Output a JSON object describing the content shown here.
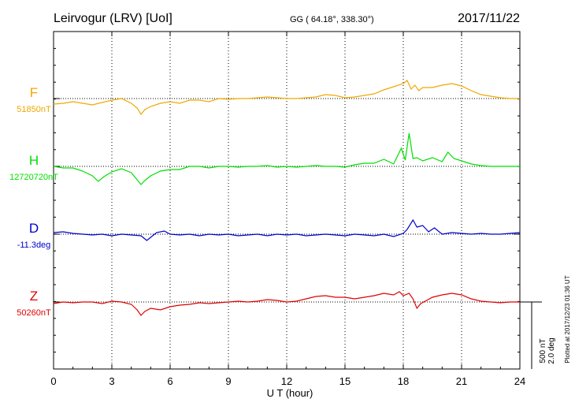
{
  "header": {
    "station": "Leirvogur (LRV)  [UoI]",
    "coords": "GG ( 64.18°, 338.30°)",
    "date": "2017/11/22"
  },
  "scale_bar": {
    "nT": "500 nT",
    "deg": "2.0 deg"
  },
  "plotted_note": "Plotted at 2017/12/23 01:36 UT",
  "colors": {
    "F": "#f0a800",
    "H": "#00e000",
    "D": "#0000cc",
    "Z": "#e00000",
    "axis": "#000000"
  },
  "chart_data": {
    "type": "line",
    "xlabel": "U T (hour)",
    "xlim": [
      0,
      24
    ],
    "xticks": [
      0,
      3,
      6,
      9,
      12,
      15,
      18,
      21,
      24
    ],
    "tick_labels": [
      "0",
      "3",
      "6",
      "9",
      "12",
      "15",
      "18",
      "21",
      "24"
    ],
    "ylim": [
      -1000,
      1000
    ],
    "ylabel": "",
    "grid": true,
    "series": [
      {
        "name": "F",
        "baseline_label": "51850nT",
        "color": "#f0a800",
        "x": [
          0,
          0.5,
          1,
          1.5,
          2,
          2.5,
          3,
          3.5,
          4,
          4.3,
          4.5,
          4.7,
          5,
          5.5,
          6,
          6.5,
          7,
          7.5,
          8,
          8.5,
          9,
          9.5,
          10,
          10.5,
          11,
          11.5,
          12,
          12.5,
          13,
          13.5,
          14,
          14.5,
          15,
          15.5,
          16,
          16.5,
          17,
          17.5,
          18,
          18.2,
          18.4,
          18.6,
          18.8,
          19,
          19.5,
          20,
          20.5,
          21,
          21.5,
          22,
          22.5,
          23,
          23.5,
          24
        ],
        "values": [
          -70,
          -60,
          -40,
          -60,
          -80,
          -50,
          -20,
          0,
          -60,
          -120,
          -200,
          -140,
          -100,
          -60,
          -40,
          -60,
          -20,
          -20,
          -40,
          0,
          -10,
          0,
          0,
          10,
          20,
          10,
          0,
          0,
          10,
          20,
          50,
          40,
          10,
          20,
          40,
          60,
          110,
          150,
          190,
          230,
          120,
          170,
          100,
          140,
          140,
          170,
          190,
          160,
          100,
          50,
          30,
          10,
          0,
          0
        ]
      },
      {
        "name": "H",
        "baseline_label": "12720720nT",
        "color": "#00e000",
        "x": [
          0,
          0.5,
          1,
          1.5,
          2,
          2.3,
          2.6,
          3,
          3.5,
          4,
          4.3,
          4.5,
          4.7,
          5,
          5.5,
          6,
          6.5,
          7,
          7.5,
          8,
          8.5,
          9,
          9.5,
          10,
          10.5,
          11,
          11.5,
          12,
          12.5,
          13,
          13.5,
          14,
          14.5,
          15,
          15.5,
          16,
          16.5,
          17,
          17.5,
          17.9,
          18.1,
          18.3,
          18.5,
          18.7,
          19,
          19.5,
          20,
          20.3,
          20.6,
          21,
          21.5,
          22,
          22.5,
          23,
          23.5,
          24
        ],
        "values": [
          0,
          -20,
          -20,
          -60,
          -120,
          -190,
          -130,
          -70,
          -30,
          -80,
          -170,
          -230,
          -180,
          -120,
          -60,
          -40,
          -40,
          0,
          0,
          -20,
          0,
          0,
          -10,
          0,
          0,
          10,
          -10,
          0,
          -10,
          0,
          10,
          0,
          0,
          -10,
          20,
          40,
          40,
          90,
          30,
          230,
          80,
          420,
          100,
          110,
          70,
          110,
          60,
          180,
          100,
          70,
          30,
          10,
          0,
          0,
          0,
          0
        ]
      },
      {
        "name": "D",
        "baseline_label": "-11.3deg",
        "color": "#0000cc",
        "x": [
          0,
          0.5,
          1,
          1.5,
          2,
          2.5,
          3,
          3.5,
          4,
          4.5,
          4.8,
          5,
          5.3,
          5.7,
          6,
          6.5,
          7,
          7.5,
          8,
          8.5,
          9,
          9.5,
          10,
          10.5,
          11,
          11.5,
          12,
          12.5,
          13,
          13.5,
          14,
          14.5,
          15,
          15.5,
          16,
          16.5,
          17,
          17.5,
          18,
          18.2,
          18.5,
          18.7,
          19,
          19.3,
          19.6,
          20,
          20.5,
          21,
          21.5,
          22,
          22.5,
          23,
          23.5,
          24
        ],
        "values": [
          20,
          30,
          10,
          0,
          -10,
          0,
          -20,
          0,
          -10,
          -20,
          -80,
          -40,
          20,
          40,
          0,
          -10,
          0,
          -20,
          0,
          -10,
          0,
          -20,
          -10,
          0,
          -20,
          0,
          -10,
          0,
          -20,
          -10,
          0,
          -10,
          -20,
          0,
          -10,
          -20,
          0,
          -30,
          10,
          60,
          180,
          90,
          110,
          30,
          80,
          0,
          20,
          10,
          0,
          10,
          0,
          0,
          10,
          20
        ]
      },
      {
        "name": "Z",
        "baseline_label": "50260nT",
        "color": "#e00000",
        "x": [
          0,
          0.5,
          1,
          1.5,
          2,
          2.5,
          3,
          3.5,
          4,
          4.3,
          4.5,
          4.7,
          5,
          5.5,
          6,
          6.5,
          7,
          7.5,
          8,
          8.5,
          9,
          9.5,
          10,
          10.5,
          11,
          11.5,
          12,
          12.5,
          13,
          13.5,
          14,
          14.5,
          15,
          15.5,
          16,
          16.5,
          17,
          17.5,
          17.8,
          18,
          18.3,
          18.5,
          18.7,
          18.9,
          19.2,
          19.5,
          20,
          20.5,
          21,
          21.5,
          22,
          22.5,
          23,
          23.5,
          24
        ],
        "values": [
          -20,
          0,
          -10,
          0,
          0,
          -20,
          10,
          0,
          -30,
          -100,
          -170,
          -120,
          -80,
          -100,
          -60,
          -40,
          -30,
          -10,
          -20,
          -10,
          0,
          10,
          0,
          10,
          30,
          20,
          0,
          10,
          40,
          70,
          80,
          60,
          60,
          40,
          60,
          80,
          110,
          90,
          130,
          80,
          110,
          40,
          -80,
          -20,
          20,
          60,
          90,
          110,
          90,
          40,
          10,
          0,
          -10,
          0,
          0
        ]
      }
    ]
  }
}
